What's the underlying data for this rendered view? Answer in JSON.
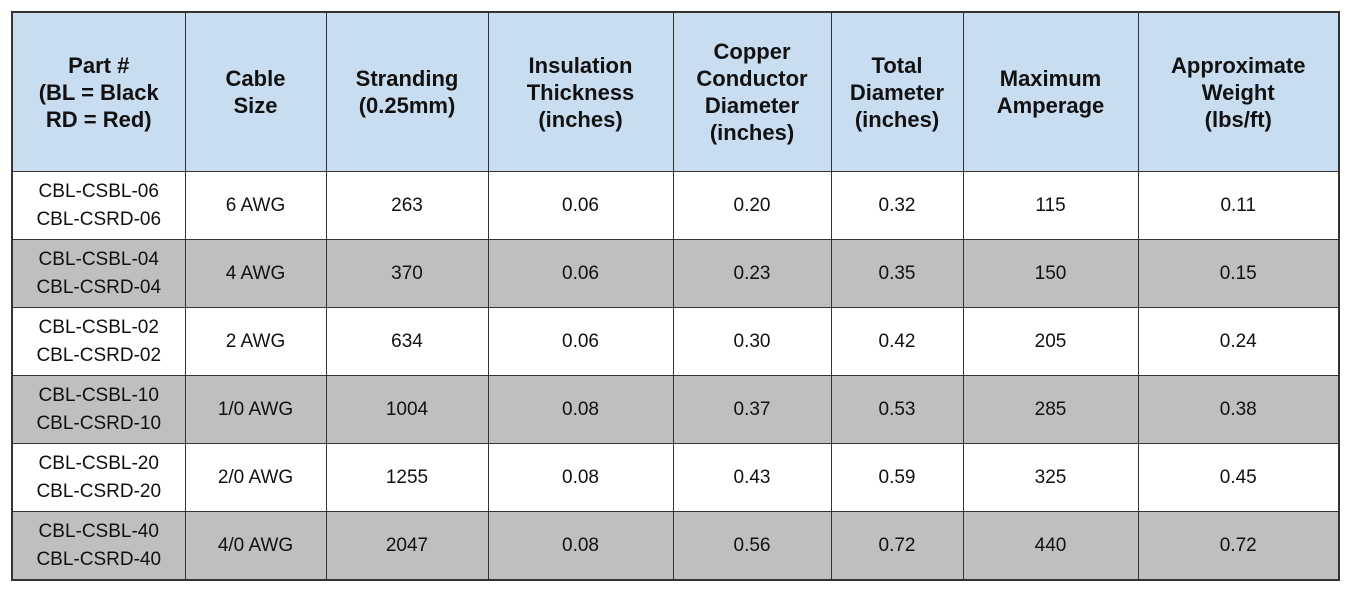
{
  "table": {
    "header": [
      [
        "Part #",
        "(BL = Black",
        "RD = Red)"
      ],
      [
        "Cable",
        "Size"
      ],
      [
        "Stranding",
        "(0.25mm)"
      ],
      [
        "Insulation",
        "Thickness",
        "(inches)"
      ],
      [
        "Copper",
        "Conductor",
        "Diameter",
        "(inches)"
      ],
      [
        "Total",
        "Diameter",
        "(inches)"
      ],
      [
        "Maximum",
        "Amperage"
      ],
      [
        "Approximate",
        "Weight",
        "(lbs/ft)"
      ]
    ],
    "rows": [
      [
        [
          "CBL-CSBL-06",
          "CBL-CSRD-06"
        ],
        "6 AWG",
        "263",
        "0.06",
        "0.20",
        "0.32",
        "115",
        "0.11"
      ],
      [
        [
          "CBL-CSBL-04",
          "CBL-CSRD-04"
        ],
        "4 AWG",
        "370",
        "0.06",
        "0.23",
        "0.35",
        "150",
        "0.15"
      ],
      [
        [
          "CBL-CSBL-02",
          "CBL-CSRD-02"
        ],
        "2 AWG",
        "634",
        "0.06",
        "0.30",
        "0.42",
        "205",
        "0.24"
      ],
      [
        [
          "CBL-CSBL-10",
          "CBL-CSRD-10"
        ],
        "1/0 AWG",
        "1004",
        "0.08",
        "0.37",
        "0.53",
        "285",
        "0.38"
      ],
      [
        [
          "CBL-CSBL-20",
          "CBL-CSRD-20"
        ],
        "2/0 AWG",
        "1255",
        "0.08",
        "0.43",
        "0.59",
        "325",
        "0.45"
      ],
      [
        [
          "CBL-CSBL-40",
          "CBL-CSRD-40"
        ],
        "4/0 AWG",
        "2047",
        "0.08",
        "0.56",
        "0.72",
        "440",
        "0.72"
      ]
    ]
  }
}
